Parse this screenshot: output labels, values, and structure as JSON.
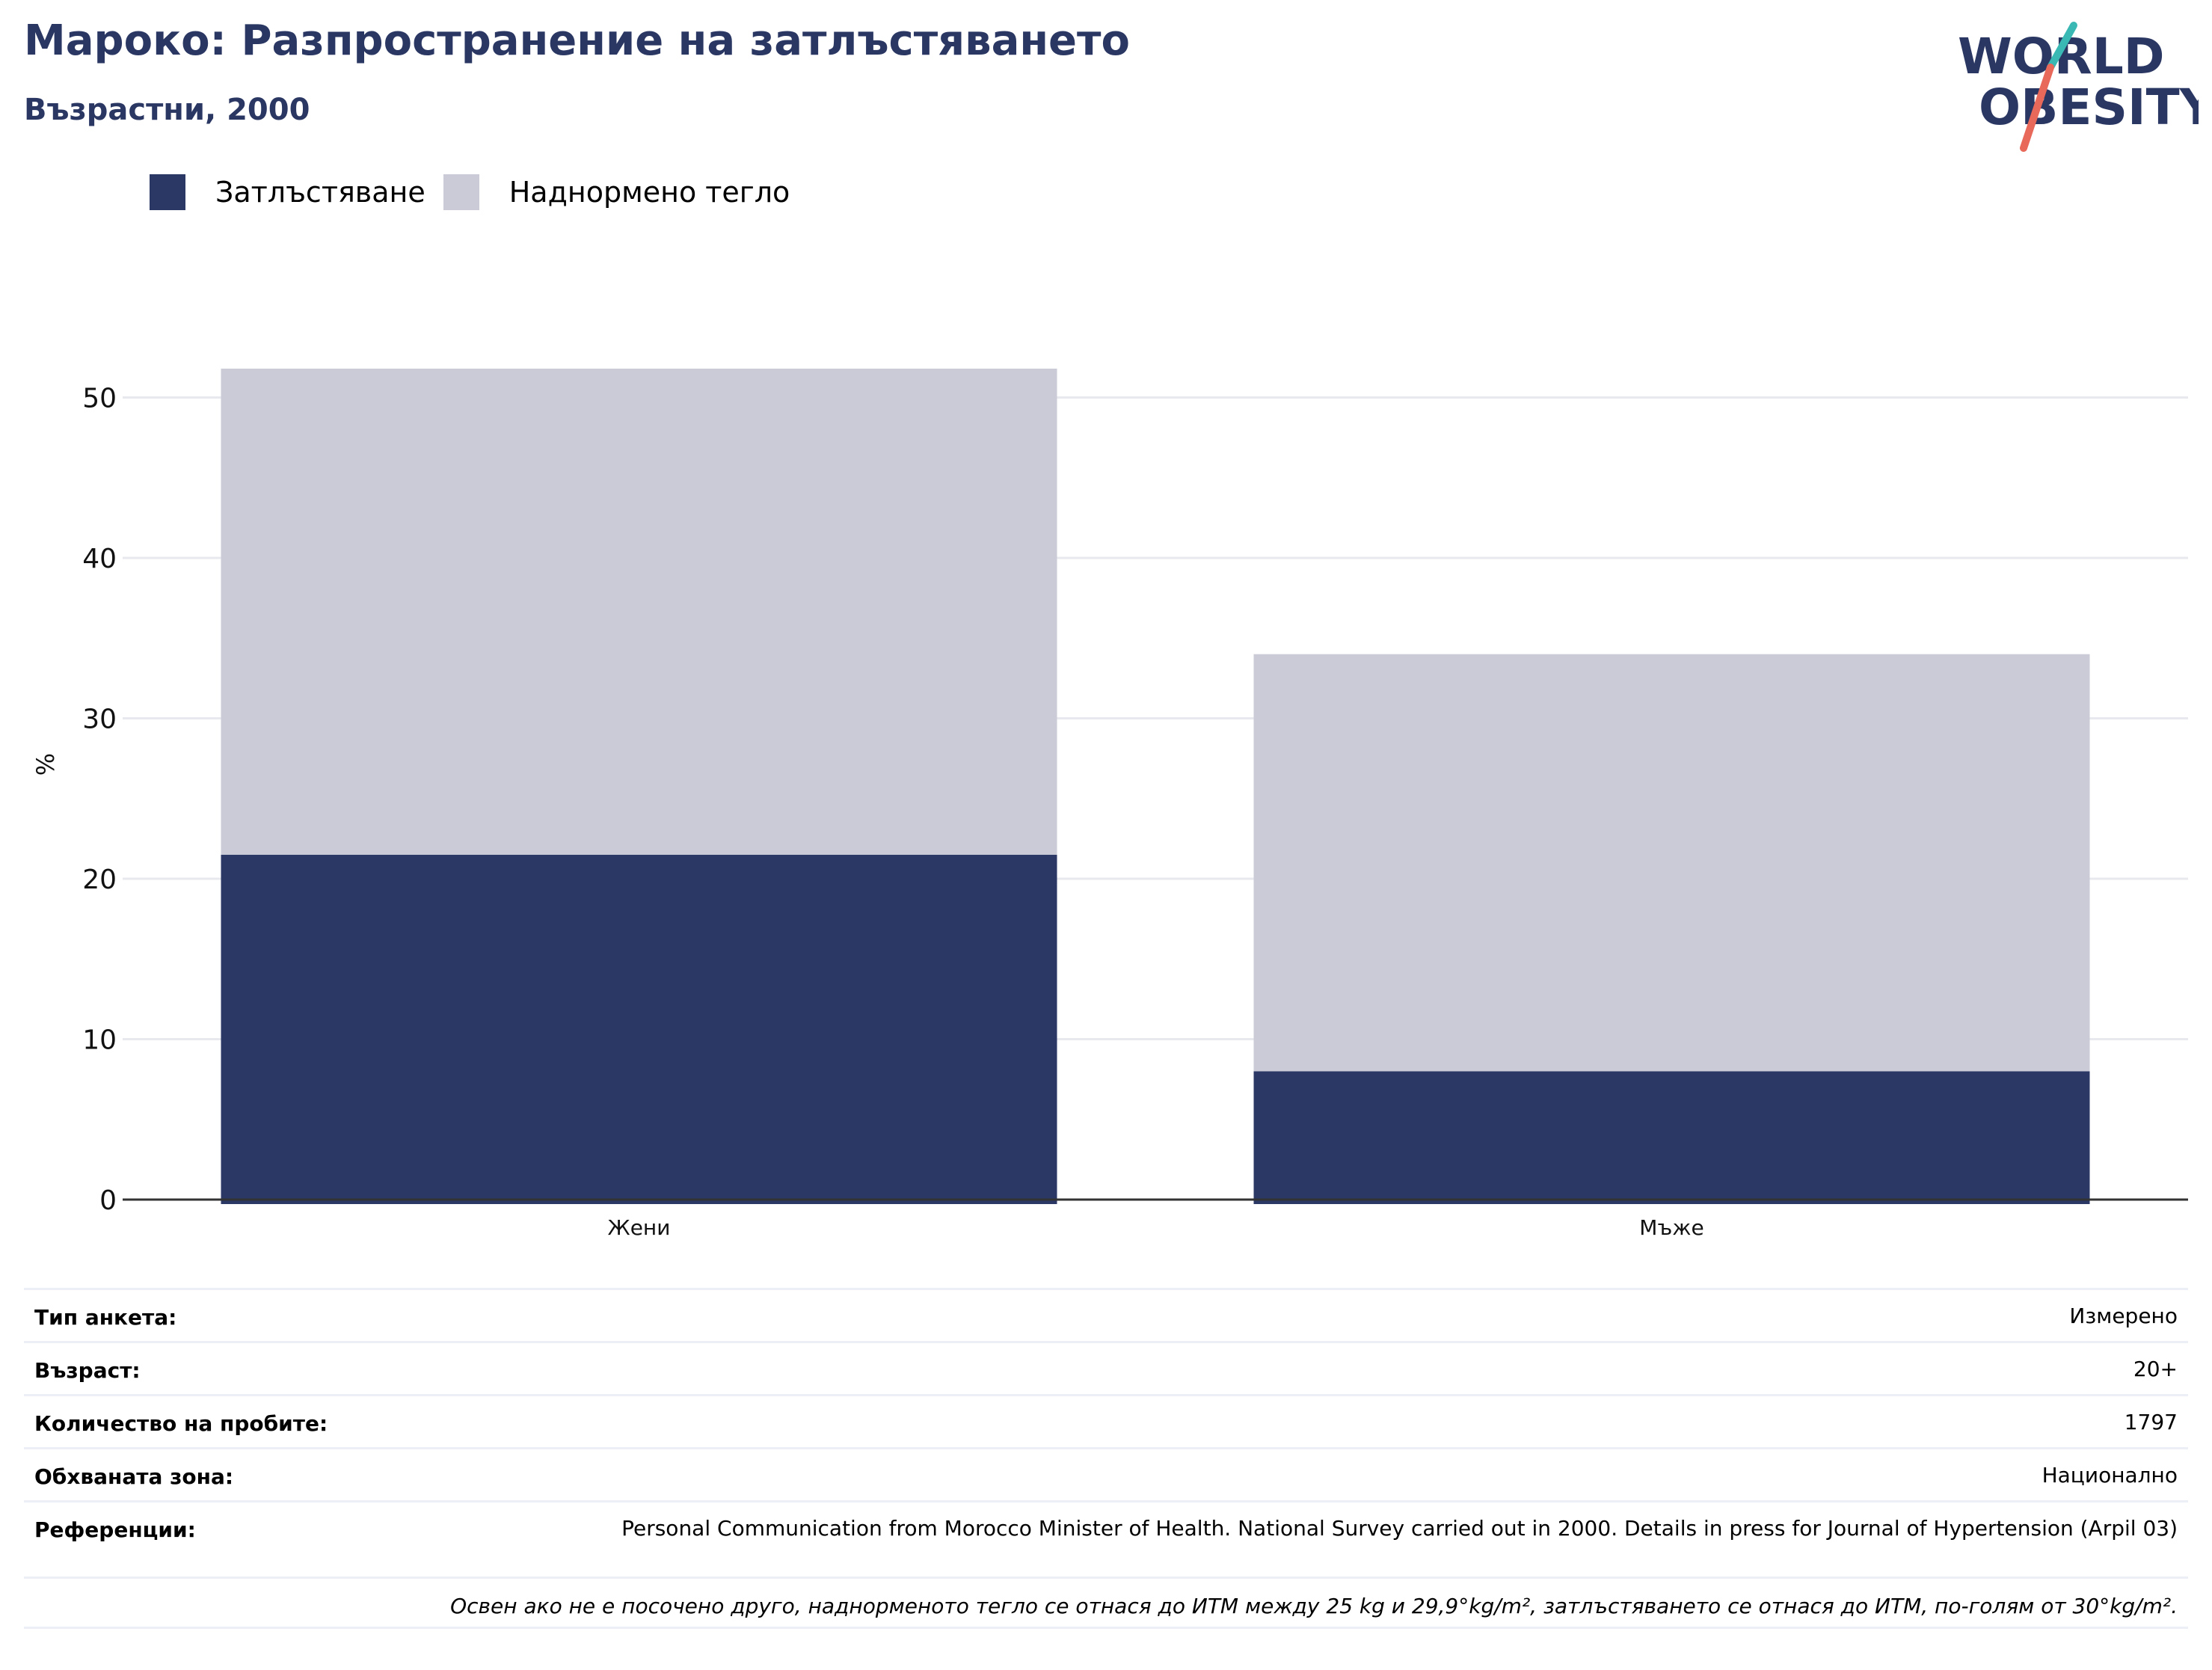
{
  "header": {
    "title": "Мароко: Разпространение на затлъстяването",
    "subtitle": "Възрастни, 2000"
  },
  "logo": {
    "line1": "WORLD",
    "line2": "OBESITY",
    "colors": {
      "text": "#2a3763",
      "slash_top": "#3ab8b4",
      "slash_bottom": "#e8685a"
    }
  },
  "legend": [
    {
      "label": "Затлъстяване",
      "color": "#2b3765"
    },
    {
      "label": "Наднормено тегло",
      "color": "#cacbd7"
    }
  ],
  "chart_data": {
    "type": "bar",
    "stacked": true,
    "categories": [
      "Жени",
      "Мъже"
    ],
    "series": [
      {
        "name": "Затлъстяване",
        "values": [
          21.5,
          8.0
        ],
        "color": "#2b3765"
      },
      {
        "name": "Наднормено тегло",
        "values": [
          30.3,
          26.0
        ],
        "color": "#cacbd7"
      }
    ],
    "ylabel": "%",
    "xlabel": "",
    "ylim": [
      0,
      60
    ],
    "yticks": [
      0,
      10,
      20,
      30,
      40,
      50
    ],
    "grid": true
  },
  "info": {
    "rows": [
      {
        "key": "Тип анкета:",
        "value": "Измерено"
      },
      {
        "key": "Възраст:",
        "value": "20+"
      },
      {
        "key": "Количество на пробите:",
        "value": "1797"
      },
      {
        "key": "Обхваната зона:",
        "value": "Национално"
      },
      {
        "key": "Референции:",
        "value": "Personal Communication from Morocco Minister of Health. National Survey carried out in 2000. Details in press for Journal of Hypertension (Arpil 03)"
      }
    ],
    "note": "Освен ако не е посочено друго, наднорменото тегло се отнася до ИТМ между 25 kg и 29,9°kg/m², затлъстяването се отнася до ИТМ, по-голям от 30°kg/m²."
  }
}
